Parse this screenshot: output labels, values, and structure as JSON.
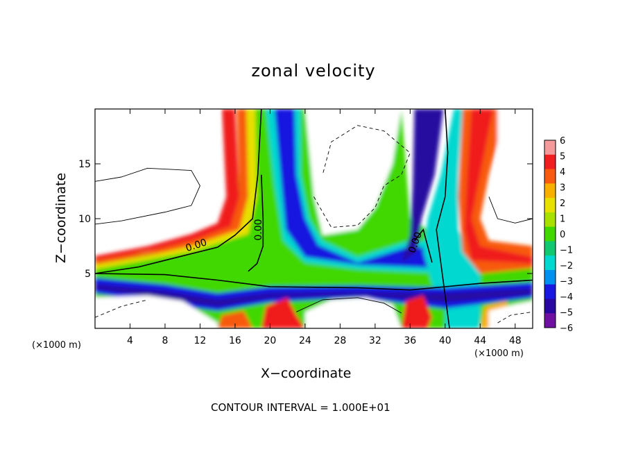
{
  "chart_data": {
    "type": "heatmap",
    "title": "zonal velocity",
    "xlabel": "X−coordinate",
    "ylabel": "Z−coordinate",
    "x_unit_left": "(×1000 m)",
    "x_unit_right": "(×1000 m)",
    "footer": "CONTOUR INTERVAL = 1.000E+01",
    "xlim": [
      0,
      50
    ],
    "ylim": [
      0,
      20
    ],
    "x_ticks": [
      4,
      8,
      12,
      16,
      20,
      24,
      28,
      32,
      36,
      40,
      44,
      48
    ],
    "y_ticks": [
      5,
      10,
      15
    ],
    "colorbar": {
      "range": [
        -6,
        6
      ],
      "ticks": [
        "6",
        "5",
        "4",
        "3",
        "2",
        "1",
        "0",
        "−1",
        "−2",
        "−3",
        "−4",
        "−5",
        "−6"
      ],
      "colors": [
        "#f49a9a",
        "#f01e1e",
        "#f85a10",
        "#f8b000",
        "#e8e000",
        "#a8e000",
        "#40d800",
        "#10c870",
        "#00d8d0",
        "#0090f0",
        "#1818e0",
        "#2808a0",
        "#7010a0"
      ]
    },
    "contour_labels": [
      "0.00",
      "0.00",
      "0.00"
    ],
    "grid": false,
    "legend": "colorbar-right"
  }
}
